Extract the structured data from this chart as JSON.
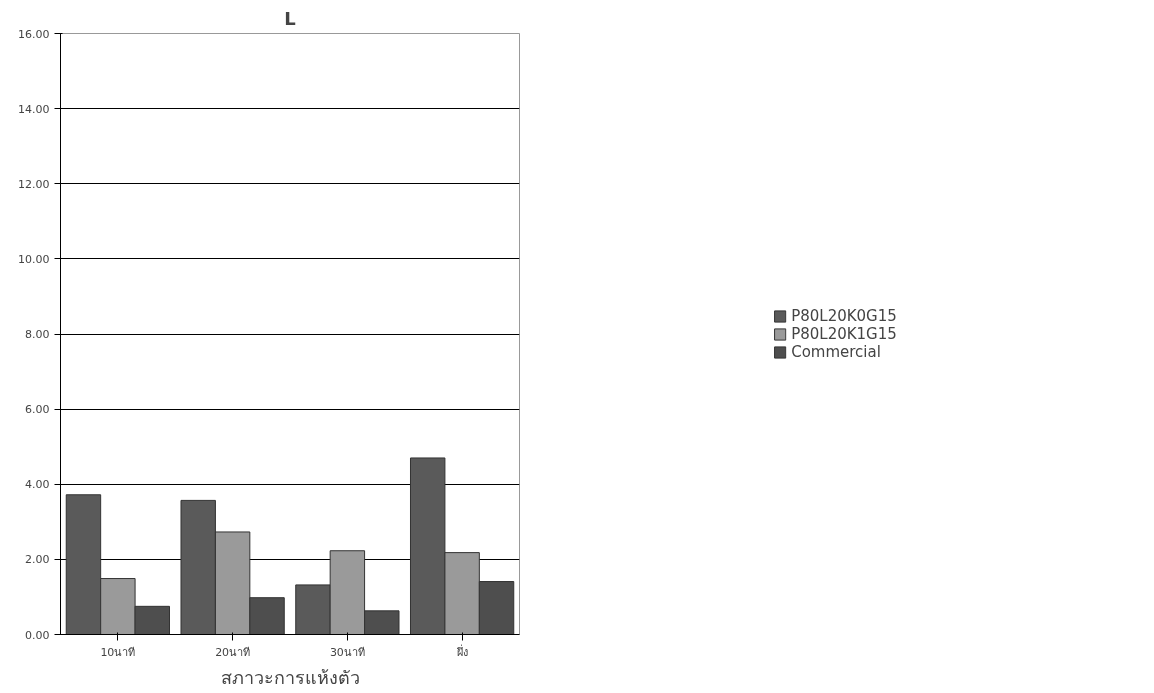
{
  "chart_data": {
    "type": "bar",
    "title": "L",
    "xlabel": "สภาวะการแห้งตัว",
    "categories": [
      "10นาที",
      "20นาที",
      "30นาที",
      "ผึ่ง"
    ],
    "series": [
      {
        "name": "P80L20K0G15",
        "color": "#5a5a5a",
        "values": [
          3.72,
          3.57,
          1.32,
          4.7
        ]
      },
      {
        "name": "P80L20K1G15",
        "color": "#9a9a9a",
        "values": [
          1.49,
          2.73,
          2.23,
          2.18
        ]
      },
      {
        "name": "Commercial",
        "color": "#4e4e4e",
        "values": [
          0.75,
          0.98,
          0.63,
          1.41
        ]
      }
    ],
    "ylim": [
      0,
      16
    ],
    "yticks": [
      {
        "value": 0,
        "label": "0.00"
      },
      {
        "value": 2,
        "label": "2.00"
      },
      {
        "value": 4,
        "label": "4.00"
      },
      {
        "value": 6,
        "label": "6.00"
      },
      {
        "value": 8,
        "label": "8.00"
      },
      {
        "value": 10,
        "label": "10.00"
      },
      {
        "value": 12,
        "label": "12.00"
      },
      {
        "value": 14,
        "label": "14.00"
      },
      {
        "value": 16,
        "label": "16.00"
      }
    ],
    "grid": "y",
    "legend": "right"
  }
}
